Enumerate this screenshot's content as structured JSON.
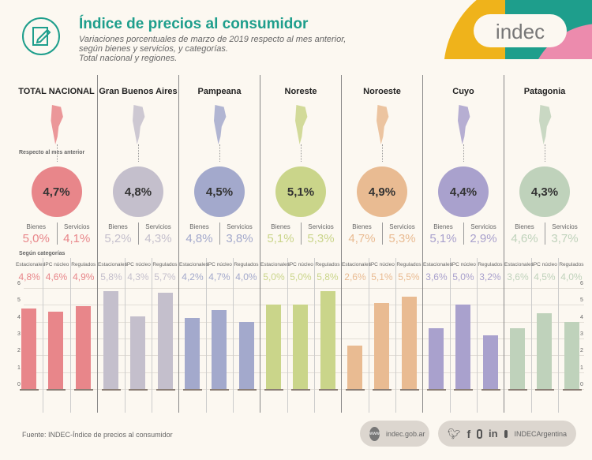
{
  "header": {
    "title": "Índice de precios al consumidor",
    "subtitle_lines": [
      "Variaciones porcentuales de marzo de 2019 respecto al mes anterior,",
      "según bienes y servicios, y categorías.",
      "Total nacional y regiones."
    ],
    "logo": "indec"
  },
  "labels": {
    "respecto": "Respecto al mes anterior",
    "segun": "Según categorías",
    "bienes": "Bienes",
    "servicios": "Servicios",
    "cats": [
      "Estacionales",
      "IPC núcleo",
      "Regulados"
    ]
  },
  "chart_data": {
    "type": "bar",
    "ylim": [
      0,
      6
    ],
    "yticks": [
      0,
      1,
      2,
      3,
      4,
      5,
      6
    ],
    "categories": [
      "Estacionales",
      "IPC núcleo",
      "Regulados"
    ],
    "regions": [
      {
        "name": "TOTAL NACIONAL",
        "color": "#e8868a",
        "general": "4,7%",
        "bienes": "5,0%",
        "servicios": "4,1%",
        "values": [
          4.8,
          4.6,
          4.9
        ],
        "labels": [
          "4,8%",
          "4,6%",
          "4,9%"
        ]
      },
      {
        "name": "Gran Buenos Aires",
        "color": "#c4bfcc",
        "general": "4,8%",
        "bienes": "5,2%",
        "servicios": "4,3%",
        "values": [
          5.8,
          4.3,
          5.7
        ],
        "labels": [
          "5,8%",
          "4,3%",
          "5,7%"
        ]
      },
      {
        "name": "Pampeana",
        "color": "#a3a9cc",
        "general": "4,5%",
        "bienes": "4,8%",
        "servicios": "3,8%",
        "values": [
          4.2,
          4.7,
          4.0
        ],
        "labels": [
          "4,2%",
          "4,7%",
          "4,0%"
        ]
      },
      {
        "name": "Noreste",
        "color": "#cad58a",
        "general": "5,1%",
        "bienes": "5,1%",
        "servicios": "5,3%",
        "values": [
          5.0,
          5.0,
          5.8
        ],
        "labels": [
          "5,0%",
          "5,0%",
          "5,8%"
        ]
      },
      {
        "name": "Noroeste",
        "color": "#e9bb92",
        "general": "4,9%",
        "bienes": "4,7%",
        "servicios": "5,3%",
        "values": [
          2.6,
          5.1,
          5.5
        ],
        "labels": [
          "2,6%",
          "5,1%",
          "5,5%"
        ]
      },
      {
        "name": "Cuyo",
        "color": "#a9a1cd",
        "general": "4,4%",
        "bienes": "5,1%",
        "servicios": "2,9%",
        "values": [
          3.6,
          5.0,
          3.2
        ],
        "labels": [
          "3,6%",
          "5,0%",
          "3,2%"
        ]
      },
      {
        "name": "Patagonia",
        "color": "#bfd2bb",
        "general": "4,3%",
        "bienes": "4,6%",
        "servicios": "3,7%",
        "values": [
          3.6,
          4.5,
          4.0
        ],
        "labels": [
          "3,6%",
          "4,5%",
          "4,0%"
        ]
      }
    ]
  },
  "footer": {
    "source": "Fuente: INDEC-Índice de precios al consumidor",
    "web": "indec.gob.ar",
    "www": "www",
    "social": "INDECArgentina"
  }
}
